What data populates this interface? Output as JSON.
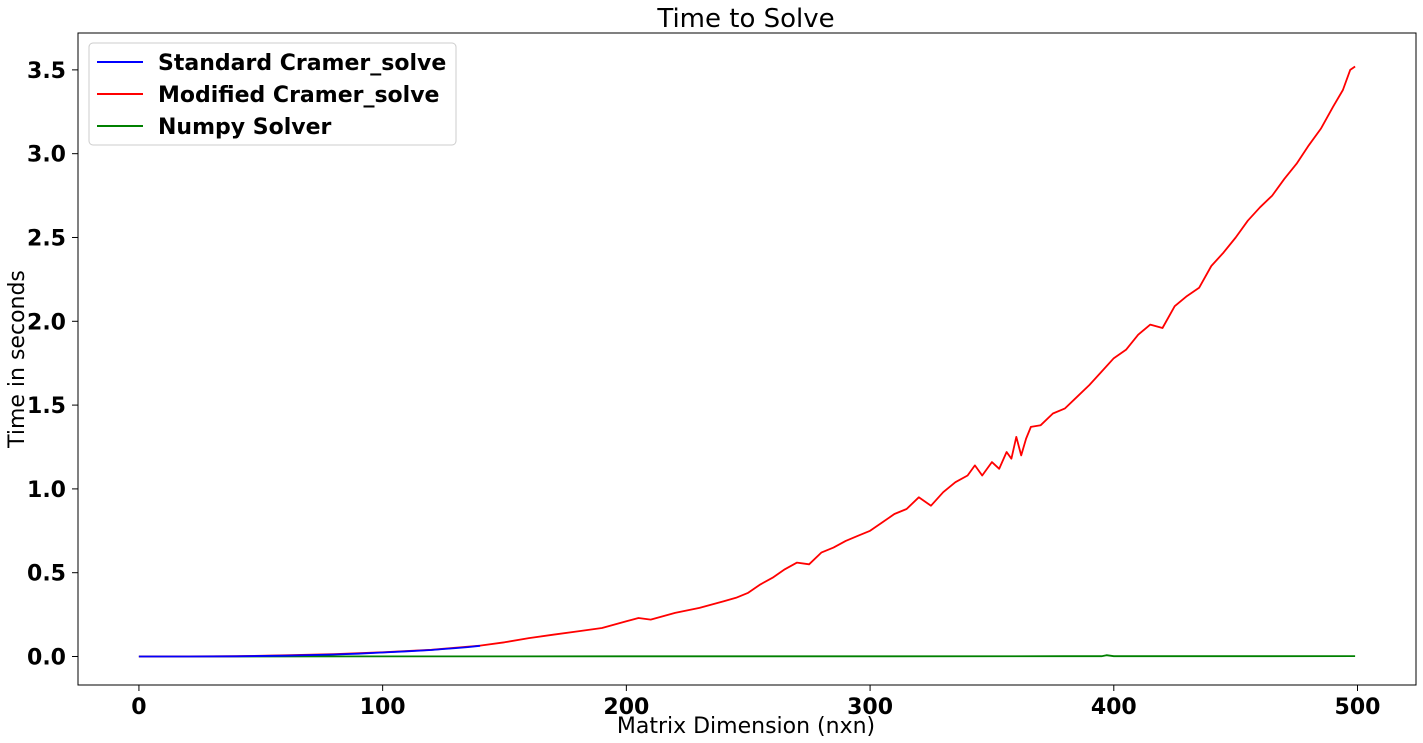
{
  "chart_data": {
    "type": "line",
    "title": "Time to Solve",
    "xlabel": "Matrix Dimension (nxn)",
    "ylabel": "Time in seconds",
    "xlim": [
      -25,
      524
    ],
    "ylim": [
      -0.17,
      3.72
    ],
    "x_ticks": [
      0,
      100,
      200,
      300,
      400,
      500
    ],
    "x_tick_labels": [
      "0",
      "100",
      "200",
      "300",
      "400",
      "500"
    ],
    "y_ticks": [
      0.0,
      0.5,
      1.0,
      1.5,
      2.0,
      2.5,
      3.0,
      3.5
    ],
    "y_tick_labels": [
      "0.0",
      "0.5",
      "1.0",
      "1.5",
      "2.0",
      "2.5",
      "3.0",
      "3.5"
    ],
    "grid": false,
    "legend_position": "top-left",
    "series": [
      {
        "name": "Standard Cramer_solve",
        "color": "#0000ff",
        "x": [
          0,
          20,
          40,
          60,
          80,
          90,
          100,
          110,
          120,
          125,
          130,
          135,
          140
        ],
        "values": [
          0.0,
          0.0002,
          0.0015,
          0.005,
          0.012,
          0.017,
          0.024,
          0.031,
          0.039,
          0.045,
          0.05,
          0.056,
          0.064
        ]
      },
      {
        "name": "Modified Cramer_solve",
        "color": "#ff0000",
        "x": [
          0,
          20,
          40,
          60,
          80,
          100,
          120,
          140,
          150,
          160,
          170,
          180,
          190,
          200,
          205,
          210,
          220,
          230,
          240,
          245,
          250,
          255,
          260,
          265,
          270,
          275,
          280,
          285,
          290,
          295,
          300,
          305,
          310,
          315,
          320,
          325,
          330,
          335,
          340,
          343,
          346,
          350,
          353,
          356,
          358,
          360,
          362,
          364,
          366,
          370,
          375,
          380,
          385,
          390,
          395,
          400,
          405,
          410,
          415,
          420,
          425,
          430,
          435,
          440,
          445,
          450,
          455,
          460,
          465,
          470,
          475,
          480,
          485,
          490,
          494,
          497,
          499
        ],
        "values": [
          0.0,
          0.0005,
          0.002,
          0.007,
          0.014,
          0.025,
          0.04,
          0.065,
          0.085,
          0.11,
          0.13,
          0.15,
          0.17,
          0.21,
          0.23,
          0.22,
          0.26,
          0.29,
          0.33,
          0.35,
          0.38,
          0.43,
          0.47,
          0.52,
          0.56,
          0.55,
          0.62,
          0.65,
          0.69,
          0.72,
          0.75,
          0.8,
          0.85,
          0.88,
          0.95,
          0.9,
          0.98,
          1.04,
          1.08,
          1.14,
          1.08,
          1.16,
          1.12,
          1.22,
          1.18,
          1.31,
          1.2,
          1.3,
          1.37,
          1.38,
          1.45,
          1.48,
          1.55,
          1.62,
          1.7,
          1.78,
          1.83,
          1.92,
          1.98,
          1.96,
          2.09,
          2.15,
          2.2,
          2.33,
          2.41,
          2.5,
          2.6,
          2.68,
          2.75,
          2.85,
          2.94,
          3.05,
          3.15,
          3.28,
          3.38,
          3.5,
          3.52
        ]
      },
      {
        "name": "Numpy Solver",
        "color": "#008000",
        "x": [
          0,
          100,
          200,
          300,
          380,
          395,
          397,
          400,
          450,
          499
        ],
        "values": [
          0.0,
          0.0008,
          0.0012,
          0.0015,
          0.002,
          0.002,
          0.008,
          0.002,
          0.002,
          0.0025
        ]
      }
    ]
  }
}
